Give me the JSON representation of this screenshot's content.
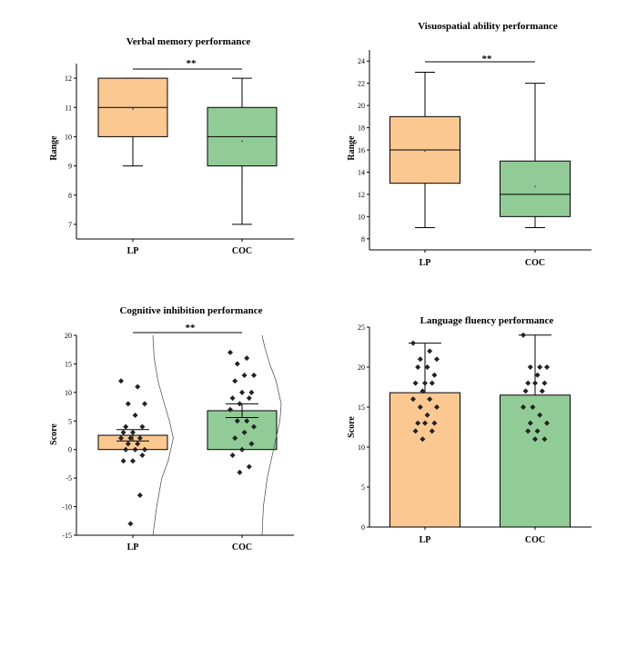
{
  "chart_data": [
    {
      "type": "box",
      "title": "Verbal memory performance",
      "ylabel": "Range",
      "categories": [
        "LP",
        "COC"
      ],
      "ylim": [
        6.5,
        12.5
      ],
      "yticks": [
        7,
        8,
        9,
        10,
        11,
        12
      ],
      "colors": [
        "#FBC891",
        "#91CC97"
      ],
      "series": [
        {
          "name": "LP",
          "min": 9,
          "q1": 10,
          "median": 11,
          "q3": 12,
          "max": 12,
          "mean": 10.95
        },
        {
          "name": "COC",
          "min": 7,
          "q1": 9,
          "median": 10,
          "q3": 11,
          "max": 12,
          "mean": 9.85
        }
      ],
      "significance": "**"
    },
    {
      "type": "box",
      "title": "Visuospatial ability performance",
      "ylabel": "Range",
      "categories": [
        "LP",
        "COC"
      ],
      "ylim": [
        7,
        25
      ],
      "yticks": [
        8,
        10,
        12,
        14,
        16,
        18,
        20,
        22,
        24
      ],
      "colors": [
        "#FBC891",
        "#91CC97"
      ],
      "series": [
        {
          "name": "LP",
          "min": 9,
          "q1": 13,
          "median": 16,
          "q3": 19,
          "max": 23,
          "mean": 15.9
        },
        {
          "name": "COC",
          "min": 9,
          "q1": 10,
          "median": 12,
          "q3": 15,
          "max": 22,
          "mean": 12.7
        }
      ],
      "significance": "**"
    },
    {
      "type": "bar",
      "title": "Cognitive inhibition performance",
      "ylabel": "Score",
      "categories": [
        "LP",
        "COC"
      ],
      "ylim": [
        -15,
        20
      ],
      "yticks": [
        -15,
        -10,
        -5,
        0,
        5,
        10,
        15,
        20
      ],
      "colors": [
        "#FBC891",
        "#91CC97"
      ],
      "values": [
        2.5,
        6.8
      ],
      "error_low": [
        1.5,
        5.6
      ],
      "error_high": [
        3.5,
        8.0
      ],
      "points": [
        [
          12,
          11,
          8,
          8,
          6,
          4,
          4,
          3,
          3,
          2,
          2,
          2,
          1,
          1,
          0,
          0,
          0,
          -1,
          -2,
          -2,
          -8,
          -13
        ],
        [
          17,
          16,
          15,
          13,
          13,
          12,
          10,
          10,
          9,
          9,
          8,
          7,
          5,
          5,
          4,
          3,
          2,
          1,
          0,
          -1,
          -3,
          -4
        ]
      ],
      "significance": "**"
    },
    {
      "type": "bar",
      "title": "Language fluency performance",
      "ylabel": "Score",
      "categories": [
        "LP",
        "COC"
      ],
      "ylim": [
        0,
        25
      ],
      "yticks": [
        0,
        5,
        10,
        15,
        20,
        25
      ],
      "colors": [
        "#FBC891",
        "#91CC97"
      ],
      "values": [
        16.8,
        16.5
      ],
      "error_high": [
        23,
        24
      ],
      "points": [
        [
          23,
          22,
          21,
          21,
          20,
          20,
          19,
          18,
          18,
          18,
          17,
          16,
          16,
          15,
          15,
          14,
          13,
          13,
          13,
          12,
          12,
          11
        ],
        [
          24,
          20,
          20,
          20,
          19,
          18,
          18,
          18,
          17,
          17,
          15,
          15,
          14,
          13,
          13,
          12,
          12,
          11,
          11
        ]
      ]
    }
  ]
}
